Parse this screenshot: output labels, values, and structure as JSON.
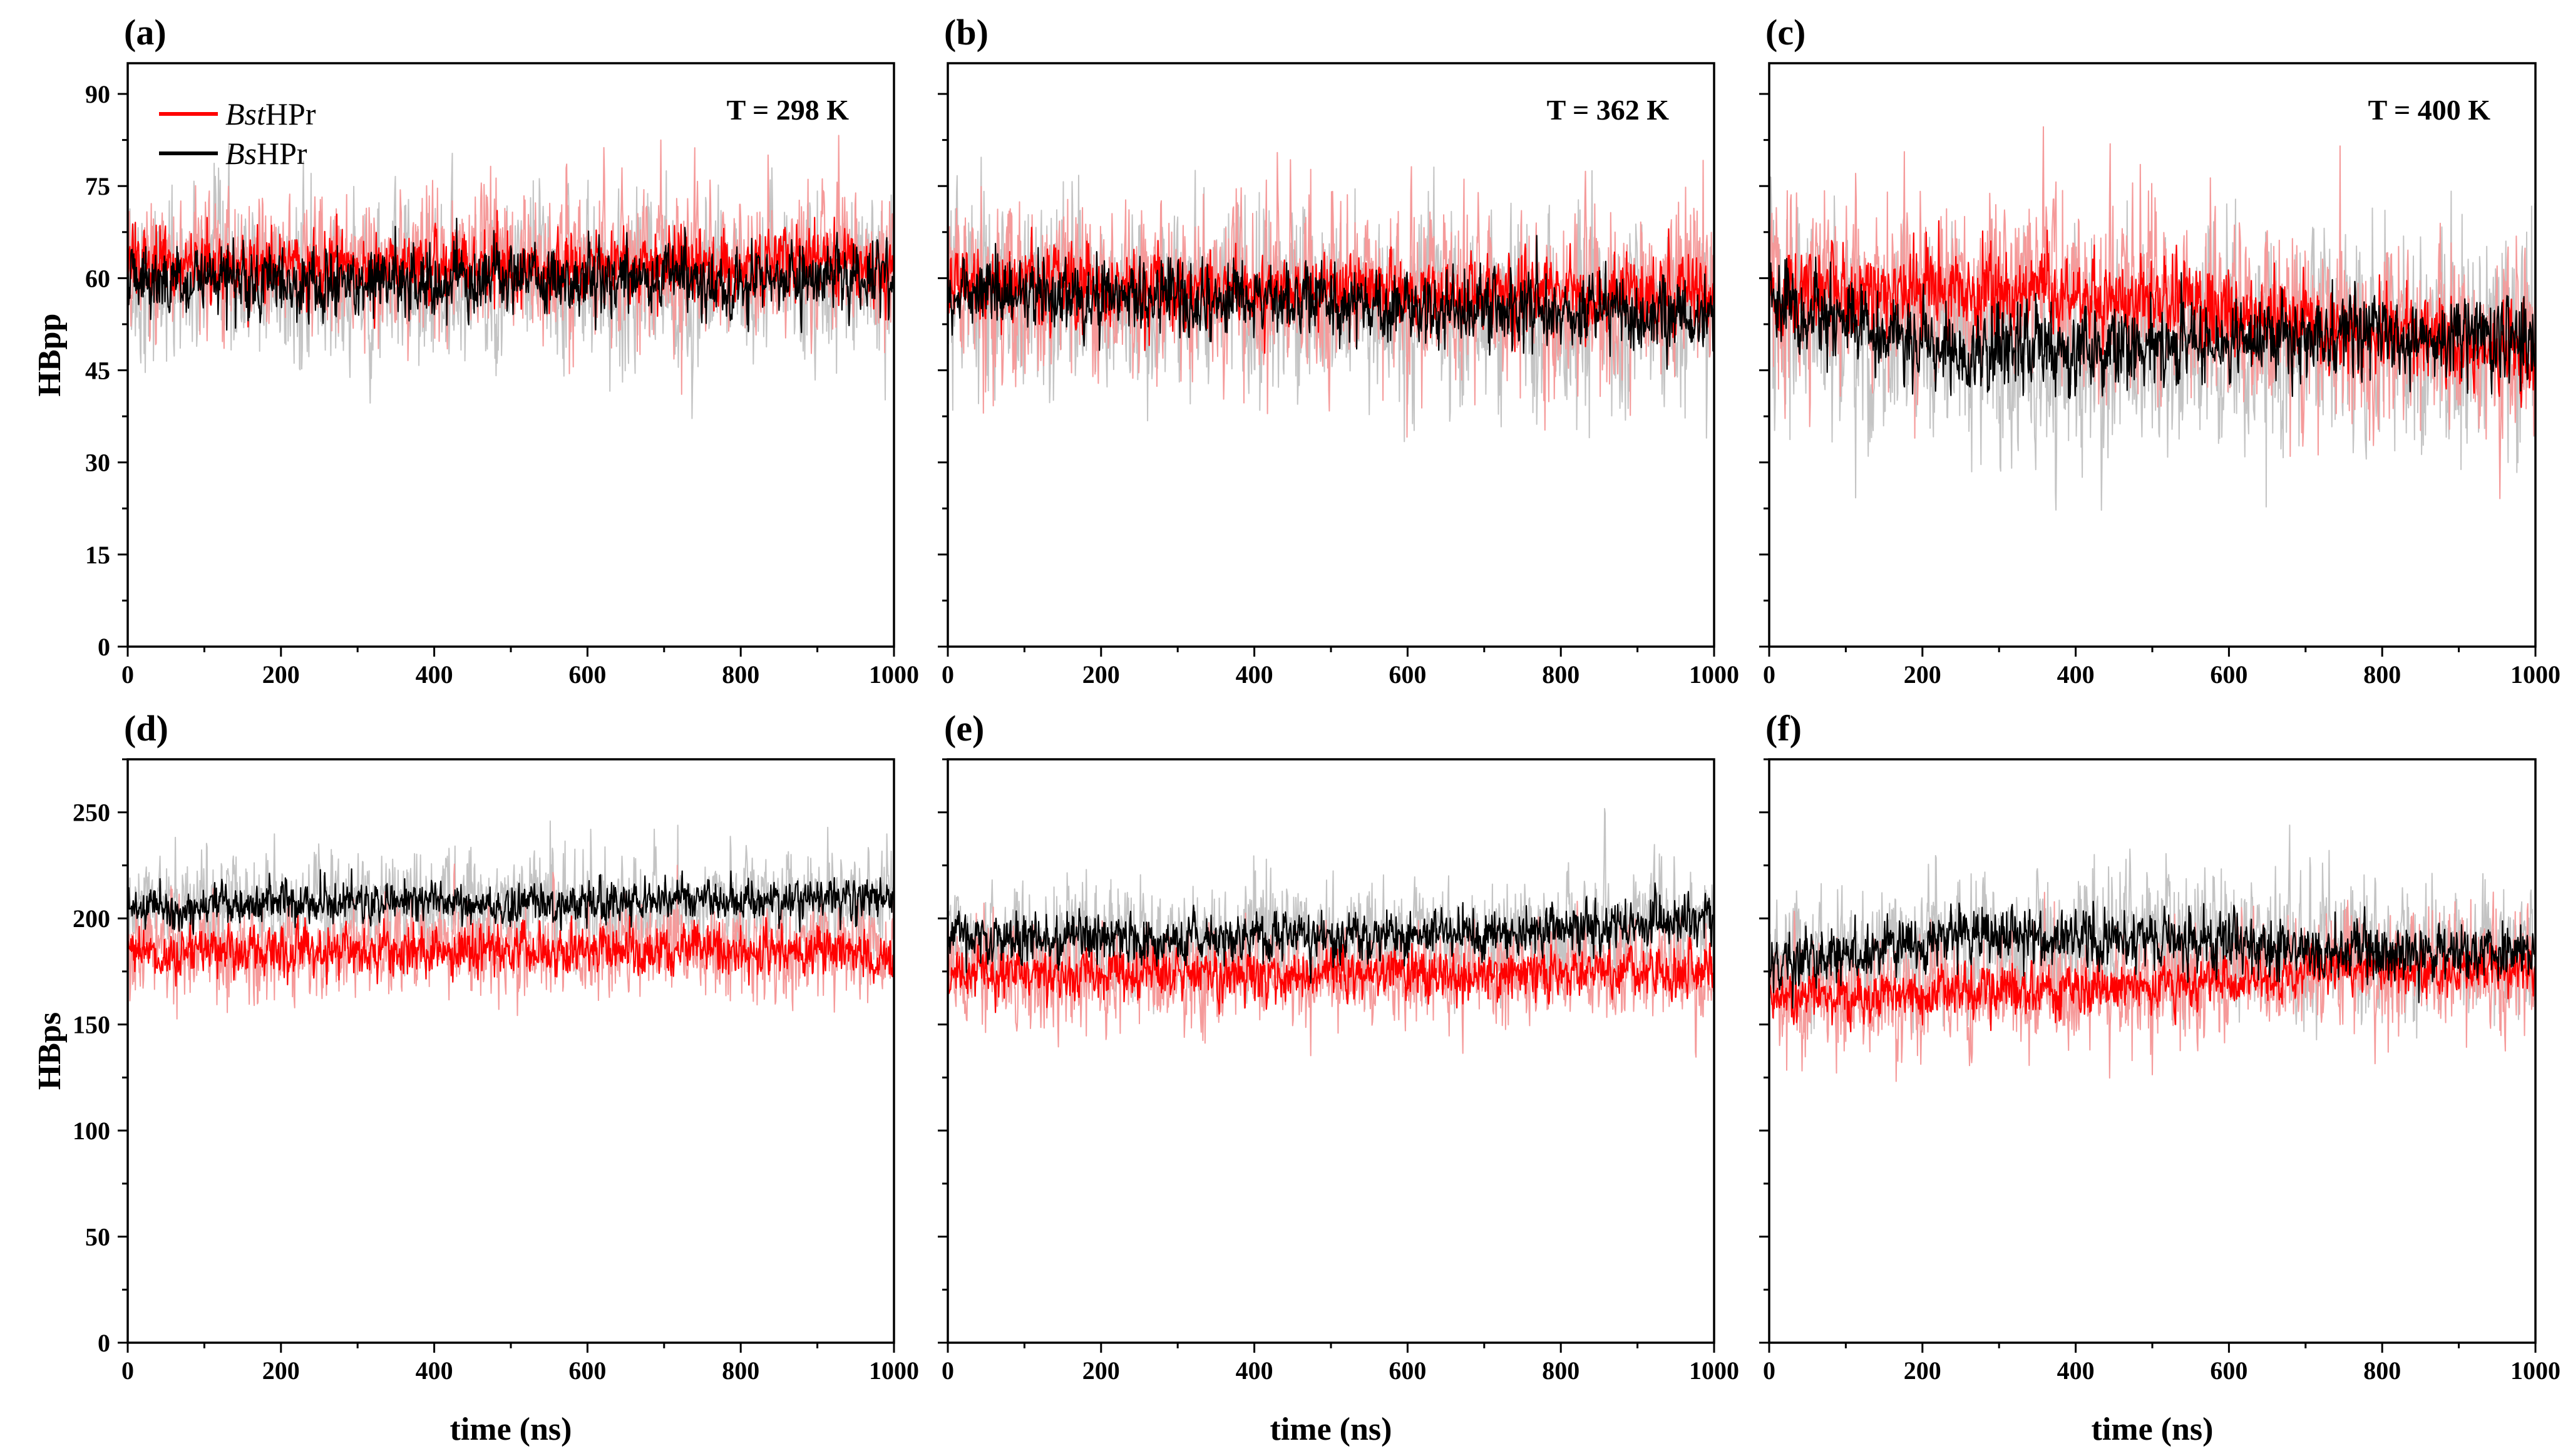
{
  "colors": {
    "bst": "#ff0000",
    "bst_light": "#f59a9a",
    "bs": "#000000",
    "bs_light": "#c4c4c4"
  },
  "legend": {
    "bst_prefix": "Bst",
    "bst_suffix": "HPr",
    "bs_prefix": "Bs",
    "bs_suffix": "HPr"
  },
  "chart_data": [
    {
      "type": "line",
      "panel": "(a)",
      "temperature": "T = 298 K",
      "xlabel": "time (ns)",
      "ylabel": "HBpp",
      "xlim": [
        0,
        1000
      ],
      "ylim": [
        0,
        95
      ],
      "xticks": [
        "0",
        "200",
        "400",
        "600",
        "800",
        "1000"
      ],
      "yticks": [
        "0",
        "15",
        "30",
        "45",
        "60",
        "75",
        "90"
      ],
      "series": [
        {
          "name": "BstHPr",
          "mean": [
            62,
            62,
            62,
            62,
            62
          ],
          "noise": 3,
          "light_noise": 6
        },
        {
          "name": "BsHPr",
          "mean": [
            60,
            59,
            60,
            59,
            60
          ],
          "noise": 3,
          "light_noise": 7
        }
      ]
    },
    {
      "type": "line",
      "panel": "(b)",
      "temperature": "T = 362 K",
      "xlabel": "time (ns)",
      "ylabel": "HBpp",
      "xlim": [
        0,
        1000
      ],
      "ylim": [
        0,
        95
      ],
      "xticks": [
        "0",
        "200",
        "400",
        "600",
        "800",
        "1000"
      ],
      "yticks": [
        "0",
        "15",
        "30",
        "45",
        "60",
        "75",
        "90"
      ],
      "series": [
        {
          "name": "BstHPr",
          "mean": [
            59,
            58,
            58,
            57,
            58
          ],
          "noise": 3,
          "light_noise": 7
        },
        {
          "name": "BsHPr",
          "mean": [
            57,
            57,
            56,
            55,
            54
          ],
          "noise": 3,
          "light_noise": 8
        }
      ]
    },
    {
      "type": "line",
      "panel": "(c)",
      "temperature": "T = 400 K",
      "xlabel": "time (ns)",
      "ylabel": "HBpp",
      "xlim": [
        0,
        1000
      ],
      "ylim": [
        0,
        95
      ],
      "xticks": [
        "0",
        "200",
        "400",
        "600",
        "800",
        "1000"
      ],
      "yticks": [
        "0",
        "15",
        "30",
        "45",
        "60",
        "75",
        "90"
      ],
      "series": [
        {
          "name": "BstHPr",
          "mean": [
            57,
            58,
            57,
            51,
            48
          ],
          "noise": 3.5,
          "light_noise": 8
        },
        {
          "name": "BsHPr",
          "mean": [
            56,
            48,
            49,
            51,
            50
          ],
          "noise": 3.5,
          "light_noise": 9
        }
      ]
    },
    {
      "type": "line",
      "panel": "(d)",
      "temperature": "",
      "xlabel": "time (ns)",
      "ylabel": "HBps",
      "xlim": [
        0,
        1000
      ],
      "ylim": [
        0,
        275
      ],
      "xticks": [
        "0",
        "200",
        "400",
        "600",
        "800",
        "1000"
      ],
      "yticks": [
        "0",
        "50",
        "100",
        "150",
        "200",
        "250"
      ],
      "series": [
        {
          "name": "BstHPr",
          "mean": [
            184,
            185,
            184,
            185,
            184
          ],
          "noise": 6,
          "light_noise": 12
        },
        {
          "name": "BsHPr",
          "mean": [
            206,
            207,
            207,
            208,
            210
          ],
          "noise": 5,
          "light_noise": 12
        }
      ]
    },
    {
      "type": "line",
      "panel": "(e)",
      "temperature": "",
      "xlabel": "time (ns)",
      "ylabel": "HBps",
      "xlim": [
        0,
        1000
      ],
      "ylim": [
        0,
        275
      ],
      "xticks": [
        "0",
        "200",
        "400",
        "600",
        "800",
        "1000"
      ],
      "yticks": [
        "0",
        "50",
        "100",
        "150",
        "200",
        "250"
      ],
      "series": [
        {
          "name": "BstHPr",
          "mean": [
            173,
            173,
            173,
            174,
            174
          ],
          "noise": 6,
          "light_noise": 12
        },
        {
          "name": "BsHPr",
          "mean": [
            190,
            190,
            191,
            193,
            199
          ],
          "noise": 6,
          "light_noise": 13
        }
      ]
    },
    {
      "type": "line",
      "panel": "(f)",
      "temperature": "",
      "xlabel": "time (ns)",
      "ylabel": "HBps",
      "xlim": [
        0,
        1000
      ],
      "ylim": [
        0,
        275
      ],
      "xticks": [
        "0",
        "200",
        "400",
        "600",
        "800",
        "1000"
      ],
      "yticks": [
        "0",
        "50",
        "100",
        "150",
        "200",
        "250"
      ],
      "series": [
        {
          "name": "BstHPr",
          "mean": [
            163,
            165,
            167,
            177,
            175
          ],
          "noise": 6,
          "light_noise": 14
        },
        {
          "name": "BsHPr",
          "mean": [
            178,
            192,
            191,
            185,
            184
          ],
          "noise": 7,
          "light_noise": 16
        }
      ]
    }
  ]
}
